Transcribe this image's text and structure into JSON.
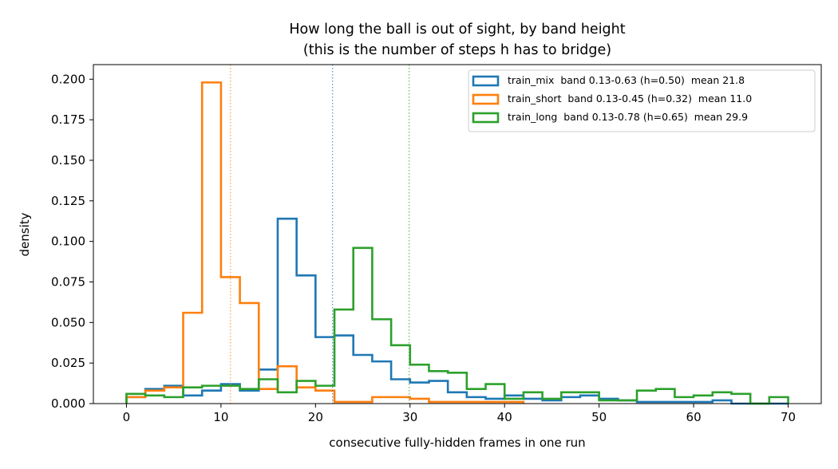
{
  "chart_data": {
    "type": "histogram",
    "title_lines": [
      "How long the ball is out of sight, by band height",
      "(this is the number of steps h has to bridge)"
    ],
    "xlabel": "consecutive fully-hidden frames in one run",
    "ylabel": "density",
    "xlim": [
      -3.5,
      73.5
    ],
    "ylim": [
      0,
      0.209
    ],
    "xticks": [
      0,
      10,
      20,
      30,
      40,
      50,
      60,
      70
    ],
    "xtick_labels": [
      "0",
      "10",
      "20",
      "30",
      "40",
      "50",
      "60",
      "70"
    ],
    "yticks": [
      0,
      0.025,
      0.05,
      0.075,
      0.1,
      0.125,
      0.15,
      0.175,
      0.2
    ],
    "ytick_labels": [
      "0.000",
      "0.025",
      "0.050",
      "0.075",
      "0.100",
      "0.125",
      "0.150",
      "0.175",
      "0.200"
    ],
    "bin_width": 2,
    "legend_position": "upper right",
    "series": [
      {
        "name": "train_mix  band 0.13-0.63 (h=0.50)  mean 21.8",
        "color": "#1f77b4",
        "mean": 21.8,
        "bins": [
          [
            0,
            0.004
          ],
          [
            2,
            0.009
          ],
          [
            4,
            0.011
          ],
          [
            6,
            0.005
          ],
          [
            8,
            0.008
          ],
          [
            10,
            0.012
          ],
          [
            12,
            0.008
          ],
          [
            14,
            0.021
          ],
          [
            16,
            0.114
          ],
          [
            18,
            0.079
          ],
          [
            20,
            0.041
          ],
          [
            22,
            0.042
          ],
          [
            24,
            0.03
          ],
          [
            26,
            0.026
          ],
          [
            28,
            0.015
          ],
          [
            30,
            0.013
          ],
          [
            32,
            0.014
          ],
          [
            34,
            0.007
          ],
          [
            36,
            0.004
          ],
          [
            38,
            0.003
          ],
          [
            40,
            0.005
          ],
          [
            42,
            0.003
          ],
          [
            44,
            0.002
          ],
          [
            46,
            0.004
          ],
          [
            48,
            0.005
          ],
          [
            50,
            0.003
          ],
          [
            52,
            0.002
          ],
          [
            54,
            0.001
          ],
          [
            56,
            0.001
          ],
          [
            58,
            0.001
          ],
          [
            60,
            0.001
          ],
          [
            62,
            0.002
          ],
          [
            64,
            0.0
          ],
          [
            66,
            0.0
          ],
          [
            68,
            0.0
          ]
        ]
      },
      {
        "name": "train_short  band 0.13-0.45 (h=0.32)  mean 11.0",
        "color": "#ff7f0e",
        "mean": 11.0,
        "bins": [
          [
            0,
            0.004
          ],
          [
            2,
            0.008
          ],
          [
            4,
            0.01
          ],
          [
            6,
            0.056
          ],
          [
            8,
            0.198
          ],
          [
            10,
            0.078
          ],
          [
            12,
            0.062
          ],
          [
            14,
            0.009
          ],
          [
            16,
            0.023
          ],
          [
            18,
            0.01
          ],
          [
            20,
            0.008
          ],
          [
            22,
            0.001
          ],
          [
            24,
            0.001
          ],
          [
            26,
            0.004
          ],
          [
            28,
            0.004
          ],
          [
            30,
            0.003
          ],
          [
            32,
            0.001
          ],
          [
            34,
            0.001
          ],
          [
            36,
            0.001
          ],
          [
            38,
            0.001
          ],
          [
            40,
            0.001
          ]
        ]
      },
      {
        "name": "train_long  band 0.13-0.78 (h=0.65)  mean 29.9",
        "color": "#2ca02c",
        "mean": 29.9,
        "bins": [
          [
            0,
            0.006
          ],
          [
            2,
            0.005
          ],
          [
            4,
            0.004
          ],
          [
            6,
            0.01
          ],
          [
            8,
            0.011
          ],
          [
            10,
            0.011
          ],
          [
            12,
            0.009
          ],
          [
            14,
            0.015
          ],
          [
            16,
            0.007
          ],
          [
            18,
            0.014
          ],
          [
            20,
            0.011
          ],
          [
            22,
            0.058
          ],
          [
            24,
            0.096
          ],
          [
            26,
            0.052
          ],
          [
            28,
            0.036
          ],
          [
            30,
            0.024
          ],
          [
            32,
            0.02
          ],
          [
            34,
            0.019
          ],
          [
            36,
            0.009
          ],
          [
            38,
            0.012
          ],
          [
            40,
            0.003
          ],
          [
            42,
            0.007
          ],
          [
            44,
            0.003
          ],
          [
            46,
            0.007
          ],
          [
            48,
            0.007
          ],
          [
            50,
            0.002
          ],
          [
            52,
            0.002
          ],
          [
            54,
            0.008
          ],
          [
            56,
            0.009
          ],
          [
            58,
            0.004
          ],
          [
            60,
            0.005
          ],
          [
            62,
            0.007
          ],
          [
            64,
            0.006
          ],
          [
            66,
            0.0
          ],
          [
            68,
            0.004
          ]
        ]
      }
    ]
  }
}
